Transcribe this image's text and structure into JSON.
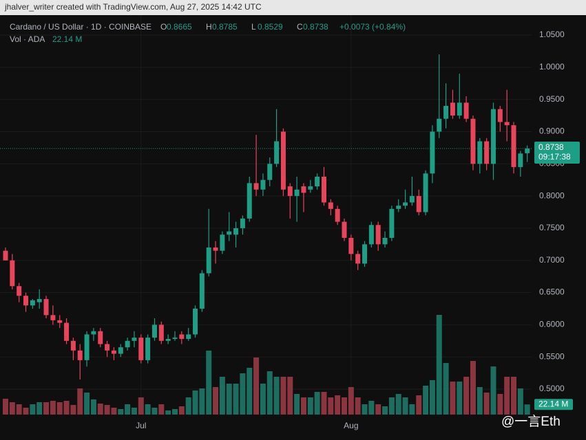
{
  "chart_data": {
    "type": "candlestick",
    "credit": "jhalver_writer created with TradingView.com, Aug 27, 2025 14:42 UTC",
    "title": "Cardano / US Dollar · 1D · COINBASE",
    "ohlc_labels": [
      "O",
      "H",
      "L",
      "C"
    ],
    "change": "+0.0073 (+0.84%)",
    "volume_title": "Vol · ADA",
    "volume_label": "22.14 M",
    "countdown": "09:17:38",
    "watermark": "@一言Eth",
    "up_color": "#1f9e86",
    "down_color": "#e8455c",
    "up_volume_color": "#1c6e60",
    "down_volume_color": "#8a3540",
    "grid": true,
    "categories": [
      null,
      null,
      null,
      null,
      null,
      null,
      null,
      null,
      null,
      null,
      null,
      null,
      null,
      null,
      null,
      null,
      null,
      null,
      null,
      null,
      "Jul",
      null,
      null,
      null,
      null,
      null,
      null,
      null,
      null,
      null,
      null,
      null,
      null,
      null,
      null,
      null,
      null,
      null,
      null,
      null,
      null,
      null,
      null,
      null,
      null,
      null,
      null,
      null,
      null,
      null,
      null,
      "Aug",
      null,
      null,
      null,
      null,
      null,
      null,
      null,
      null,
      null,
      null,
      null,
      null,
      null,
      null,
      null,
      null,
      null,
      null,
      null,
      null,
      null,
      null,
      null,
      null,
      null,
      null
    ],
    "open": [
      0.715,
      0.7,
      0.66,
      0.645,
      0.63,
      0.635,
      0.64,
      0.615,
      0.607,
      0.603,
      0.575,
      0.56,
      0.545,
      0.585,
      0.59,
      0.57,
      0.56,
      0.555,
      0.565,
      0.575,
      0.58,
      0.545,
      0.58,
      0.6,
      0.575,
      0.578,
      0.585,
      0.578,
      0.585,
      0.625,
      0.68,
      0.72,
      0.715,
      0.74,
      0.74,
      0.75,
      0.765,
      0.82,
      0.81,
      0.825,
      0.85,
      0.9,
      0.815,
      0.8,
      0.815,
      0.81,
      0.815,
      0.83,
      0.79,
      0.78,
      0.76,
      0.735,
      0.71,
      0.695,
      0.725,
      0.755,
      0.725,
      0.735,
      0.78,
      0.785,
      0.79,
      0.8,
      0.775,
      0.835,
      0.9,
      0.92,
      0.945,
      0.925,
      0.945,
      0.92,
      0.85,
      0.885,
      0.85,
      0.935,
      0.915,
      0.91,
      0.845,
      0.8665
    ],
    "high": [
      0.72,
      0.71,
      0.665,
      0.65,
      0.64,
      0.655,
      0.645,
      0.63,
      0.615,
      0.61,
      0.58,
      0.57,
      0.59,
      0.595,
      0.595,
      0.575,
      0.565,
      0.57,
      0.58,
      0.59,
      0.585,
      0.585,
      0.61,
      0.605,
      0.585,
      0.59,
      0.59,
      0.595,
      0.63,
      0.685,
      0.78,
      0.73,
      0.745,
      0.775,
      0.76,
      0.77,
      0.83,
      0.895,
      0.835,
      0.86,
      0.935,
      0.905,
      0.82,
      0.83,
      0.82,
      0.825,
      0.835,
      0.845,
      0.795,
      0.785,
      0.765,
      0.74,
      0.715,
      0.73,
      0.76,
      0.76,
      0.745,
      0.785,
      0.795,
      0.81,
      0.83,
      0.81,
      0.84,
      0.91,
      1.02,
      0.975,
      0.965,
      0.99,
      0.955,
      0.925,
      0.89,
      0.89,
      0.945,
      0.94,
      0.965,
      0.915,
      0.87,
      0.8785
    ],
    "low": [
      0.7,
      0.655,
      0.635,
      0.62,
      0.625,
      0.625,
      0.61,
      0.6,
      0.595,
      0.57,
      0.545,
      0.515,
      0.535,
      0.575,
      0.565,
      0.55,
      0.545,
      0.55,
      0.56,
      0.565,
      0.54,
      0.54,
      0.575,
      0.57,
      0.57,
      0.575,
      0.57,
      0.575,
      0.58,
      0.62,
      0.675,
      0.695,
      0.71,
      0.73,
      0.72,
      0.74,
      0.76,
      0.8,
      0.8,
      0.815,
      0.845,
      0.8,
      0.765,
      0.76,
      0.775,
      0.805,
      0.81,
      0.785,
      0.77,
      0.755,
      0.73,
      0.7,
      0.685,
      0.69,
      0.72,
      0.715,
      0.72,
      0.73,
      0.775,
      0.78,
      0.785,
      0.77,
      0.77,
      0.82,
      0.89,
      0.905,
      0.92,
      0.92,
      0.915,
      0.84,
      0.835,
      0.84,
      0.825,
      0.9,
      0.885,
      0.835,
      0.83,
      0.8529
    ],
    "close": [
      0.7,
      0.66,
      0.645,
      0.63,
      0.638,
      0.64,
      0.615,
      0.607,
      0.603,
      0.575,
      0.56,
      0.545,
      0.585,
      0.59,
      0.57,
      0.56,
      0.555,
      0.565,
      0.575,
      0.58,
      0.545,
      0.58,
      0.6,
      0.575,
      0.578,
      0.58,
      0.578,
      0.585,
      0.625,
      0.68,
      0.72,
      0.715,
      0.74,
      0.745,
      0.75,
      0.765,
      0.82,
      0.81,
      0.825,
      0.85,
      0.885,
      0.81,
      0.8,
      0.81,
      0.805,
      0.815,
      0.83,
      0.79,
      0.78,
      0.76,
      0.735,
      0.71,
      0.695,
      0.725,
      0.755,
      0.725,
      0.735,
      0.78,
      0.785,
      0.79,
      0.8,
      0.775,
      0.835,
      0.9,
      0.92,
      0.94,
      0.925,
      0.945,
      0.92,
      0.85,
      0.885,
      0.85,
      0.935,
      0.915,
      0.91,
      0.845,
      0.866,
      0.8738
    ],
    "volume": [
      34.5,
      27,
      22.5,
      15,
      22.5,
      27,
      27,
      30,
      27,
      30,
      21,
      57,
      48,
      33,
      24,
      21,
      15,
      12,
      22.5,
      15,
      37.5,
      22.5,
      15,
      22.5,
      9,
      12,
      18,
      37.5,
      52.5,
      57,
      139.5,
      60,
      82.5,
      67.5,
      67.5,
      90,
      102,
      124.5,
      67.5,
      94.5,
      82.5,
      82.5,
      82.5,
      45,
      37.5,
      37.5,
      49.5,
      49.5,
      37.5,
      42,
      37.5,
      60,
      37.5,
      22.5,
      30,
      22.5,
      18,
      37.5,
      45,
      37.5,
      22.5,
      42,
      63,
      75,
      217.5,
      112.5,
      72,
      72,
      82.5,
      117,
      60,
      48,
      105,
      45,
      82.5,
      82.5,
      57,
      22.14
    ],
    "volume_lim": [
      0,
      300
    ],
    "ylim": [
      0.4605,
      1.081
    ],
    "yticks": [
      {
        "value": 0.5,
        "label": "0.5000"
      },
      {
        "value": 0.55,
        "label": "0.5500"
      },
      {
        "value": 0.6,
        "label": "0.6000"
      },
      {
        "value": 0.65,
        "label": "0.6500"
      },
      {
        "value": 0.7,
        "label": "0.7000"
      },
      {
        "value": 0.75,
        "label": "0.7500"
      },
      {
        "value": 0.8,
        "label": "0.8000"
      },
      {
        "value": 0.85,
        "label": "0.8500"
      },
      {
        "value": 0.9,
        "label": "0.9000"
      },
      {
        "value": 0.95,
        "label": "0.9500"
      },
      {
        "value": 1.0,
        "label": "1.0000"
      },
      {
        "value": 1.05,
        "label": "1.0500"
      }
    ]
  }
}
